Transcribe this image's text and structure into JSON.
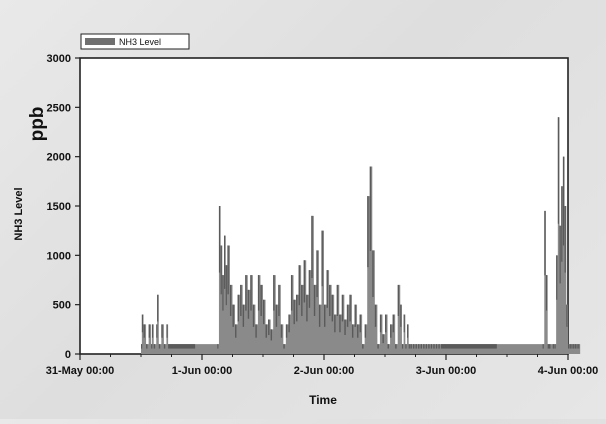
{
  "chart_data": {
    "type": "area",
    "title": "",
    "xlabel": "Time",
    "ylabel": "NH3 Level",
    "yunit": "ppb",
    "ylim": [
      0,
      3000
    ],
    "xlim": [
      "2011-05-31 00:00",
      "2011-06-04 00:00"
    ],
    "yticks": [
      0,
      500,
      1000,
      1500,
      2000,
      2500,
      3000
    ],
    "xticks": [
      "31-May 00:00",
      "1-Jun 00:00",
      "2-Jun 00:00",
      "3-Jun 00:00",
      "4-Jun 00:00"
    ],
    "grid": false,
    "legend_position": "top-left",
    "series": [
      {
        "name": "NH3 Level",
        "color": "#5a5a5a",
        "fill_light": "#8a8a8a",
        "x": [
          "31-May 12:00",
          "31-May 12:10",
          "31-May 12:30",
          "31-May 13:00",
          "31-May 13:30",
          "31-May 14:00",
          "31-May 14:10",
          "31-May 14:30",
          "31-May 15:00",
          "31-May 15:10",
          "31-May 15:30",
          "31-May 16:00",
          "31-May 16:30",
          "31-May 17:00",
          "31-May 17:20",
          "1-Jun 03:00",
          "1-Jun 03:20",
          "1-Jun 03:40",
          "1-Jun 04:00",
          "1-Jun 04:20",
          "1-Jun 04:40",
          "1-Jun 05:00",
          "1-Jun 05:30",
          "1-Jun 06:00",
          "1-Jun 06:30",
          "1-Jun 07:00",
          "1-Jun 07:30",
          "1-Jun 08:00",
          "1-Jun 08:30",
          "1-Jun 09:00",
          "1-Jun 09:30",
          "1-Jun 10:00",
          "1-Jun 10:30",
          "1-Jun 11:00",
          "1-Jun 11:30",
          "1-Jun 12:00",
          "1-Jun 12:30",
          "1-Jun 13:00",
          "1-Jun 13:30",
          "1-Jun 14:00",
          "1-Jun 14:30",
          "1-Jun 15:00",
          "1-Jun 15:30",
          "1-Jun 16:00",
          "1-Jun 16:30",
          "1-Jun 17:00",
          "1-Jun 17:30",
          "1-Jun 18:00",
          "1-Jun 18:30",
          "1-Jun 19:00",
          "1-Jun 19:30",
          "1-Jun 20:00",
          "1-Jun 20:30",
          "1-Jun 21:00",
          "1-Jun 21:30",
          "1-Jun 22:00",
          "1-Jun 22:30",
          "1-Jun 23:00",
          "1-Jun 23:30",
          "2-Jun 00:00",
          "2-Jun 00:30",
          "2-Jun 01:00",
          "2-Jun 01:30",
          "2-Jun 02:00",
          "2-Jun 02:30",
          "2-Jun 03:00",
          "2-Jun 03:30",
          "2-Jun 04:00",
          "2-Jun 04:30",
          "2-Jun 05:00",
          "2-Jun 05:30",
          "2-Jun 06:00",
          "2-Jun 06:30",
          "2-Jun 07:00",
          "2-Jun 07:30",
          "2-Jun 08:00",
          "2-Jun 08:30",
          "2-Jun 09:00",
          "2-Jun 09:30",
          "2-Jun 10:00",
          "2-Jun 10:30",
          "2-Jun 11:00",
          "2-Jun 11:30",
          "2-Jun 12:00",
          "2-Jun 12:30",
          "2-Jun 13:00",
          "2-Jun 13:30",
          "2-Jun 14:00",
          "2-Jun 14:30",
          "2-Jun 15:00",
          "2-Jun 15:20",
          "2-Jun 15:40",
          "2-Jun 16:00",
          "2-Jun 16:20",
          "2-Jun 16:40",
          "2-Jun 17:00",
          "2-Jun 17:30",
          "2-Jun 18:00",
          "2-Jun 18:30",
          "2-Jun 19:00",
          "2-Jun 19:30",
          "2-Jun 20:00",
          "2-Jun 20:30",
          "2-Jun 21:00",
          "2-Jun 21:30",
          "2-Jun 22:00",
          "2-Jun 22:30",
          "2-Jun 23:00",
          "3-Jun 19:00",
          "3-Jun 19:20",
          "3-Jun 19:40",
          "3-Jun 20:00",
          "3-Jun 21:00",
          "3-Jun 21:20",
          "3-Jun 21:40",
          "3-Jun 22:00",
          "3-Jun 22:20",
          "3-Jun 22:40",
          "3-Jun 23:00",
          "3-Jun 23:20",
          "3-Jun 23:40",
          "4-Jun 00:00",
          "4-Jun 00:20",
          "4-Jun 00:40",
          "4-Jun 01:00",
          "4-Jun 01:20",
          "4-Jun 01:40",
          "4-Jun 02:00"
        ],
        "values": [
          100,
          400,
          300,
          100,
          300,
          100,
          300,
          100,
          300,
          600,
          100,
          300,
          100,
          300,
          100,
          100,
          1500,
          1100,
          800,
          1200,
          900,
          1100,
          700,
          500,
          300,
          600,
          700,
          500,
          800,
          650,
          800,
          500,
          300,
          800,
          700,
          550,
          300,
          350,
          250,
          800,
          500,
          700,
          300,
          100,
          300,
          400,
          800,
          550,
          600,
          900,
          700,
          950,
          600,
          850,
          1400,
          700,
          1050,
          500,
          1250,
          500,
          850,
          700,
          600,
          400,
          700,
          400,
          600,
          350,
          500,
          600,
          300,
          500,
          300,
          400,
          100,
          300,
          1600,
          1900,
          1050,
          500,
          100,
          400,
          200,
          400,
          100,
          300,
          400,
          100,
          700,
          500,
          100,
          400,
          100,
          300,
          100,
          100,
          100,
          100,
          100,
          100,
          100,
          100,
          100,
          100,
          100,
          100,
          100,
          100,
          100,
          1450,
          800,
          100,
          100,
          100,
          1000,
          2400,
          1300,
          1700,
          2000,
          1500,
          500,
          100,
          100,
          100,
          100,
          100,
          100,
          100
        ]
      }
    ]
  }
}
